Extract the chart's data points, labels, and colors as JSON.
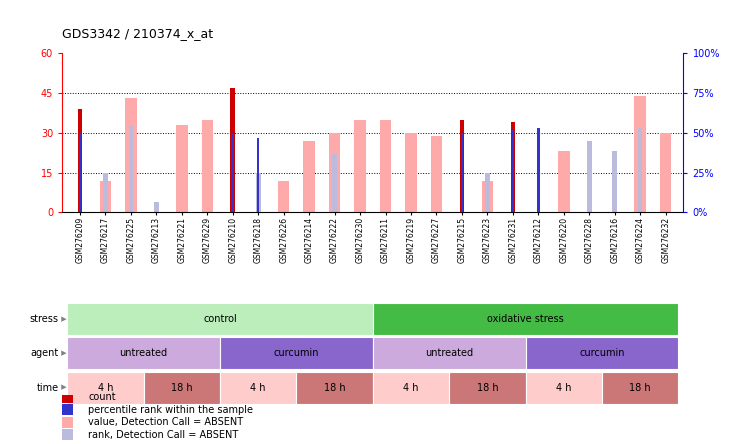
{
  "title": "GDS3342 / 210374_x_at",
  "samples": [
    "GSM276209",
    "GSM276217",
    "GSM276225",
    "GSM276213",
    "GSM276221",
    "GSM276229",
    "GSM276210",
    "GSM276218",
    "GSM276226",
    "GSM276214",
    "GSM276222",
    "GSM276230",
    "GSM276211",
    "GSM276219",
    "GSM276227",
    "GSM276215",
    "GSM276223",
    "GSM276231",
    "GSM276212",
    "GSM276220",
    "GSM276228",
    "GSM276216",
    "GSM276224",
    "GSM276232"
  ],
  "count": [
    39,
    0,
    0,
    0,
    0,
    0,
    47,
    0,
    0,
    0,
    0,
    0,
    0,
    0,
    0,
    35,
    0,
    34,
    0,
    0,
    0,
    0,
    0,
    0
  ],
  "percentile_rank": [
    30,
    0,
    0,
    0,
    0,
    0,
    30,
    28,
    0,
    0,
    0,
    0,
    0,
    0,
    0,
    30,
    0,
    31,
    32,
    0,
    0,
    0,
    0,
    0
  ],
  "value_absent": [
    0,
    12,
    43,
    0,
    33,
    35,
    0,
    0,
    12,
    27,
    30,
    35,
    35,
    30,
    29,
    0,
    12,
    0,
    0,
    23,
    0,
    0,
    44,
    30
  ],
  "rank_absent": [
    0,
    15,
    33,
    4,
    0,
    0,
    0,
    15,
    0,
    0,
    22,
    0,
    0,
    0,
    0,
    0,
    15,
    0,
    0,
    0,
    27,
    23,
    32,
    0
  ],
  "ylim_left": [
    0,
    60
  ],
  "ylim_right": [
    0,
    100
  ],
  "yticks_left": [
    0,
    15,
    30,
    45,
    60
  ],
  "yticks_right": [
    0,
    25,
    50,
    75,
    100
  ],
  "ytick_labels_left": [
    "0",
    "15",
    "30",
    "45",
    "60"
  ],
  "ytick_labels_right": [
    "0%",
    "25%",
    "50%",
    "75%",
    "100%"
  ],
  "hlines": [
    15,
    30,
    45
  ],
  "color_count": "#cc0000",
  "color_percentile": "#3333cc",
  "color_value_absent": "#ffaaaa",
  "color_rank_absent": "#bbbbdd",
  "stress_labels": [
    {
      "text": "control",
      "start": 0,
      "end": 11,
      "color": "#bbeebb"
    },
    {
      "text": "oxidative stress",
      "start": 12,
      "end": 23,
      "color": "#44bb44"
    }
  ],
  "agent_labels": [
    {
      "text": "untreated",
      "start": 0,
      "end": 5,
      "color": "#ccaade"
    },
    {
      "text": "curcumin",
      "start": 6,
      "end": 11,
      "color": "#8866cc"
    },
    {
      "text": "untreated",
      "start": 12,
      "end": 17,
      "color": "#ccaade"
    },
    {
      "text": "curcumin",
      "start": 18,
      "end": 23,
      "color": "#8866cc"
    }
  ],
  "time_labels": [
    {
      "text": "4 h",
      "start": 0,
      "end": 2,
      "color": "#ffcccc"
    },
    {
      "text": "18 h",
      "start": 3,
      "end": 5,
      "color": "#cc7777"
    },
    {
      "text": "4 h",
      "start": 6,
      "end": 8,
      "color": "#ffcccc"
    },
    {
      "text": "18 h",
      "start": 9,
      "end": 11,
      "color": "#cc7777"
    },
    {
      "text": "4 h",
      "start": 12,
      "end": 14,
      "color": "#ffcccc"
    },
    {
      "text": "18 h",
      "start": 15,
      "end": 17,
      "color": "#cc7777"
    },
    {
      "text": "4 h",
      "start": 18,
      "end": 20,
      "color": "#ffcccc"
    },
    {
      "text": "18 h",
      "start": 21,
      "end": 23,
      "color": "#cc7777"
    }
  ],
  "legend_items": [
    {
      "color": "#cc0000",
      "label": "count"
    },
    {
      "color": "#3333cc",
      "label": "percentile rank within the sample"
    },
    {
      "color": "#ffaaaa",
      "label": "value, Detection Call = ABSENT"
    },
    {
      "color": "#bbbbdd",
      "label": "rank, Detection Call = ABSENT"
    }
  ],
  "background_color": "#ffffff"
}
